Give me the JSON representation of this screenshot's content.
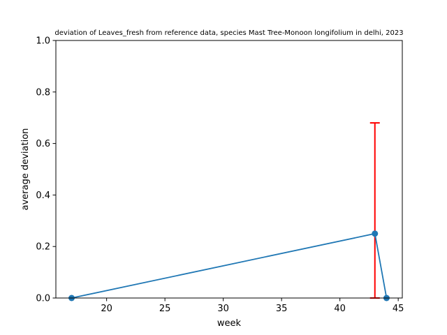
{
  "chart_data": {
    "type": "line",
    "title": "deviation of Leaves_fresh from reference data, species Mast Tree-Monoon longifolium in delhi, 2023",
    "xlabel": "week",
    "ylabel": "average deviation",
    "xlim": [
      15.65,
      45.35
    ],
    "ylim": [
      0,
      1.0
    ],
    "xticks": [
      20,
      25,
      30,
      35,
      40,
      45
    ],
    "yticks": [
      0.0,
      0.2,
      0.4,
      0.6,
      0.8,
      1.0
    ],
    "series": [
      {
        "x": [
          17,
          43,
          44
        ],
        "y": [
          0.0,
          0.25,
          0.0
        ],
        "color": "#1f77b4"
      }
    ],
    "error_bars": [
      {
        "x": 43,
        "low": 0.0,
        "high": 0.68,
        "color": "#ff0000"
      }
    ],
    "grid": false,
    "legend": "none"
  }
}
